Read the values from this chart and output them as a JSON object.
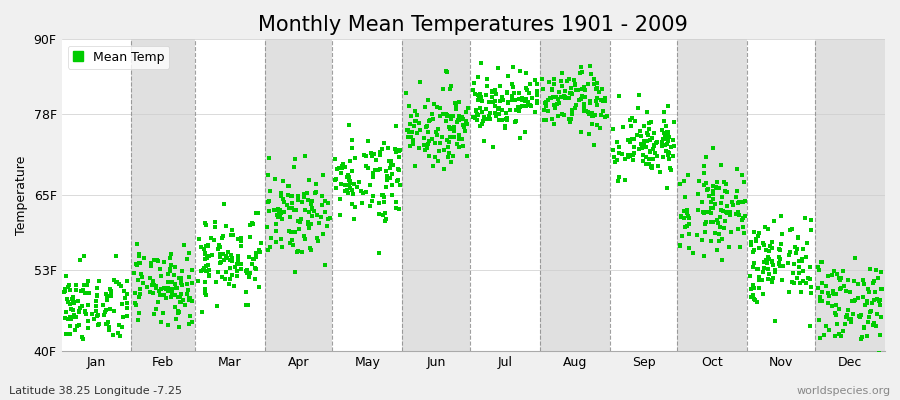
{
  "title": "Monthly Mean Temperatures 1901 - 2009",
  "ylabel": "Temperature",
  "xlabel_months": [
    "Jan",
    "Feb",
    "Mar",
    "Apr",
    "May",
    "Jun",
    "Jul",
    "Aug",
    "Sep",
    "Oct",
    "Nov",
    "Dec"
  ],
  "ytick_labels": [
    "40F",
    "53F",
    "65F",
    "78F",
    "90F"
  ],
  "ytick_values": [
    40,
    53,
    65,
    78,
    90
  ],
  "ylim": [
    40,
    90
  ],
  "dot_color": "#00CC00",
  "background_color": "#f0f0f0",
  "white_band_color": "#ffffff",
  "gray_band_color": "#e0e0e0",
  "legend_label": "Mean Temp",
  "bottom_left": "Latitude 38.25 Longitude -7.25",
  "bottom_right": "worldspecies.org",
  "monthly_means_F": [
    47,
    50,
    55,
    62,
    68,
    76,
    80,
    80,
    73,
    63,
    54,
    48
  ],
  "monthly_stds_F": [
    3.0,
    3.0,
    3.5,
    3.5,
    3.5,
    3.0,
    2.5,
    2.5,
    3.0,
    3.5,
    3.5,
    3.5
  ],
  "n_years": 109,
  "title_fontsize": 15,
  "axis_fontsize": 9,
  "legend_fontsize": 9,
  "annotation_fontsize": 8,
  "marker_size": 5
}
